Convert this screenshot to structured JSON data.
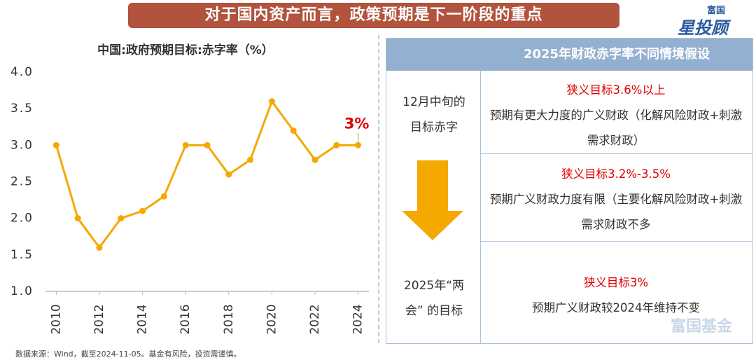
{
  "header": {
    "title": "对于国内资产而言，政策预期是下一阶段的重点"
  },
  "logo": {
    "top": "富国",
    "main": "星投顾"
  },
  "chart_data": {
    "type": "line",
    "title": "中国:政府预期目标:赤字率（%）",
    "x": [
      2010,
      2011,
      2012,
      2013,
      2014,
      2015,
      2016,
      2017,
      2018,
      2019,
      2020,
      2021,
      2022,
      2023,
      2024
    ],
    "series": [
      {
        "name": "赤字率",
        "color": "#f5a800",
        "values": [
          3.0,
          2.0,
          1.6,
          2.0,
          2.1,
          2.3,
          3.0,
          3.0,
          2.6,
          2.8,
          3.6,
          3.2,
          2.8,
          3.0,
          3.0
        ]
      }
    ],
    "annotation": "3%",
    "xlim": [
      2009.5,
      2024.5
    ],
    "xticks": [
      2010,
      2012,
      2014,
      2016,
      2018,
      2020,
      2022,
      2024
    ],
    "ylim": [
      1,
      4
    ],
    "yticks": [
      {
        "value": 1,
        "label": "1.0"
      },
      {
        "value": 1.5,
        "label": "1.5"
      },
      {
        "value": 2,
        "label": "2.0"
      },
      {
        "value": 2.5,
        "label": "2.5"
      },
      {
        "value": 3,
        "label": "3.0"
      },
      {
        "value": 3.5,
        "label": "3.5"
      },
      {
        "value": 4,
        "label": "4.0"
      }
    ],
    "grid": false
  },
  "table": {
    "title": "2025年财政赤字率不同情境假设",
    "left": [
      "12月中旬的目标赤字",
      "2025年“两会” 的目标"
    ],
    "rows": [
      {
        "target": "狭义目标3.6%以上",
        "text": "预期有更大力度的广义财政（化解风险财政+刺激需求财政）"
      },
      {
        "target": "狭义目标3.2%-3.5%",
        "text": "预期广义财政力度有限（主要化解风险财政+刺激需求财政不多"
      },
      {
        "target": "狭义目标3%",
        "text": "预期广义财政较2024年维持不变"
      }
    ]
  },
  "watermark": "富国基金",
  "source": "数据来源：Wind，截至2024-11-05。基金有风险，投资需谨慎。"
}
